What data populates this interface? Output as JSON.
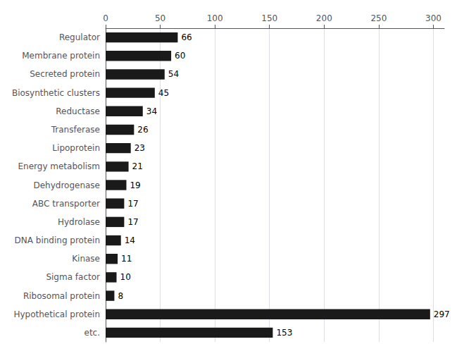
{
  "chart_data": {
    "type": "bar",
    "orientation": "horizontal",
    "categories": [
      "etc.",
      "Hypothetical protein",
      "Ribosomal protein",
      "Sigma factor",
      "Kinase",
      "DNA binding protein",
      "Hydrolase",
      "ABC transporter",
      "Dehydrogenase",
      "Energy metabolism",
      "Lipoprotein",
      "Transferase",
      "Reductase",
      "Biosynthetic clusters",
      "Secreted protein",
      "Membrane protein",
      "Regulator"
    ],
    "values": [
      153,
      297,
      8,
      10,
      11,
      14,
      17,
      17,
      19,
      21,
      23,
      26,
      34,
      45,
      54,
      60,
      66
    ],
    "color": "#1a1a1a",
    "xlim": [
      0,
      310
    ],
    "xticks": [
      0,
      50,
      100,
      150,
      200,
      250,
      300
    ],
    "grid": true,
    "data_labels": true
  }
}
